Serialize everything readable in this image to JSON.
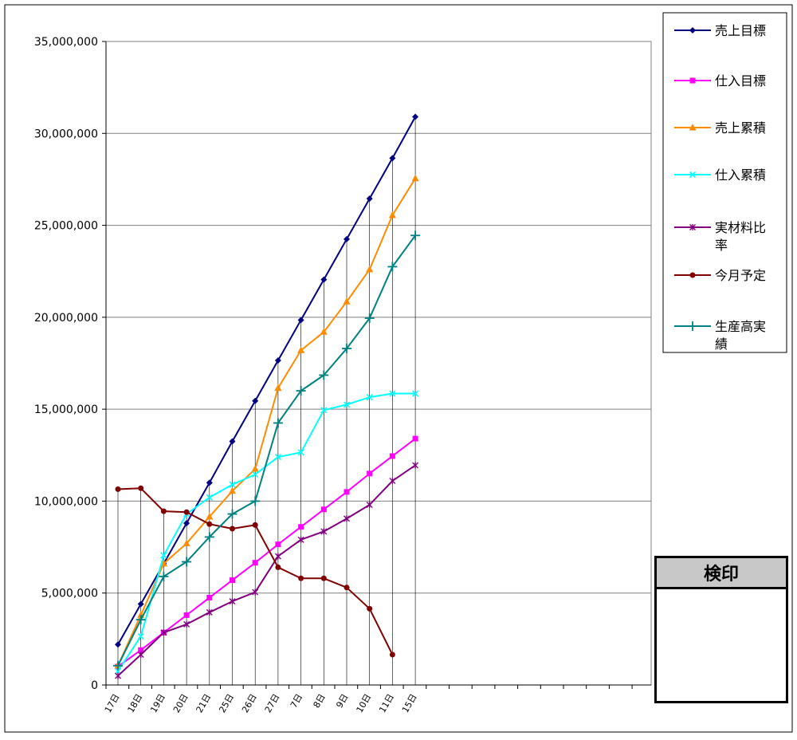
{
  "chart_data": {
    "type": "line",
    "title": "",
    "xlabel": "",
    "ylabel": "",
    "categories": [
      "17日",
      "18日",
      "19日",
      "20日",
      "21日",
      "25日",
      "26日",
      "27日",
      "7日",
      "8日",
      "9日",
      "10日",
      "11日",
      "15日"
    ],
    "ylim": [
      0,
      35000000
    ],
    "yticks": [
      0,
      5000000,
      10000000,
      15000000,
      20000000,
      25000000,
      30000000,
      35000000
    ],
    "ytick_labels": [
      "0",
      "5,000,000",
      "10,000,000",
      "15,000,000",
      "20,000,000",
      "25,000,000",
      "30,000,000",
      "35,000,000"
    ],
    "grid": "horizontal",
    "legend_position": "right",
    "series": [
      {
        "name": "売上目標",
        "color": "#000080",
        "marker": "diamond",
        "values": [
          2200000,
          4400000,
          6600000,
          8800000,
          11000000,
          13250000,
          15450000,
          17650000,
          19850000,
          22050000,
          24250000,
          26450000,
          28650000,
          30900000
        ]
      },
      {
        "name": "仕入目標",
        "color": "#ff00ff",
        "marker": "square",
        "values": [
          1000000,
          1900000,
          2850000,
          3800000,
          4750000,
          5700000,
          6650000,
          7650000,
          8600000,
          9550000,
          10500000,
          11500000,
          12450000,
          13400000
        ]
      },
      {
        "name": "売上累積",
        "color": "#ff8c00",
        "marker": "triangle",
        "values": [
          1050000,
          3800000,
          6600000,
          7700000,
          9150000,
          10550000,
          11750000,
          16150000,
          18200000,
          19200000,
          20850000,
          22600000,
          25550000,
          27550000
        ]
      },
      {
        "name": "仕入累積",
        "color": "#00ffff",
        "marker": "x",
        "values": [
          750000,
          2650000,
          7050000,
          9300000,
          10200000,
          10900000,
          11450000,
          12400000,
          12650000,
          14950000,
          15250000,
          15650000,
          15850000,
          15850000
        ]
      },
      {
        "name": "実材料比率",
        "color": "#800080",
        "marker": "star",
        "values": [
          500000,
          1650000,
          2850000,
          3300000,
          3950000,
          4550000,
          5050000,
          7000000,
          7900000,
          8350000,
          9050000,
          9800000,
          11100000,
          11950000
        ]
      },
      {
        "name": "今月予定",
        "color": "#800000",
        "marker": "circle",
        "values": [
          10650000,
          10700000,
          9450000,
          9400000,
          8750000,
          8500000,
          8700000,
          6400000,
          5800000,
          5800000,
          5300000,
          4150000,
          1650000,
          null
        ]
      },
      {
        "name": "生産高実績",
        "color": "#008080",
        "marker": "plus",
        "values": [
          1050000,
          3550000,
          5900000,
          6700000,
          8050000,
          9300000,
          10000000,
          14250000,
          16000000,
          16850000,
          18300000,
          19950000,
          22750000,
          24450000
        ]
      }
    ],
    "extra_x_slots": 11
  },
  "stamp": {
    "title": "検印"
  }
}
